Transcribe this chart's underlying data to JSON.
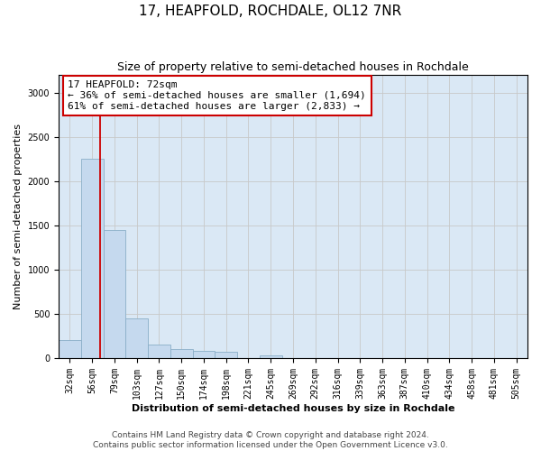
{
  "title": "17, HEAPFOLD, ROCHDALE, OL12 7NR",
  "subtitle": "Size of property relative to semi-detached houses in Rochdale",
  "xlabel": "Distribution of semi-detached houses by size in Rochdale",
  "ylabel": "Number of semi-detached properties",
  "categories": [
    "32sqm",
    "56sqm",
    "79sqm",
    "103sqm",
    "127sqm",
    "150sqm",
    "174sqm",
    "198sqm",
    "221sqm",
    "245sqm",
    "269sqm",
    "292sqm",
    "316sqm",
    "339sqm",
    "363sqm",
    "387sqm",
    "410sqm",
    "434sqm",
    "458sqm",
    "481sqm",
    "505sqm"
  ],
  "values": [
    205,
    2250,
    1450,
    450,
    155,
    105,
    80,
    70,
    0,
    30,
    0,
    0,
    0,
    0,
    0,
    0,
    0,
    0,
    0,
    0,
    0
  ],
  "bar_color": "#C5D9EE",
  "bar_edge_color": "#8AAEC8",
  "bar_linewidth": 0.6,
  "grid_color": "#C8C8C8",
  "bg_color": "#DAE8F5",
  "red_line_x": 1.35,
  "red_line_color": "#CC0000",
  "annotation_text": "17 HEAPFOLD: 72sqm\n← 36% of semi-detached houses are smaller (1,694)\n61% of semi-detached houses are larger (2,833) →",
  "annotation_box_color": "white",
  "annotation_box_edge": "#CC0000",
  "footer": "Contains HM Land Registry data © Crown copyright and database right 2024.\nContains public sector information licensed under the Open Government Licence v3.0.",
  "ylim": [
    0,
    3200
  ],
  "yticks": [
    0,
    500,
    1000,
    1500,
    2000,
    2500,
    3000
  ],
  "title_fontsize": 11,
  "subtitle_fontsize": 9,
  "label_fontsize": 8,
  "tick_fontsize": 7,
  "footer_fontsize": 6.5,
  "annot_fontsize": 8
}
